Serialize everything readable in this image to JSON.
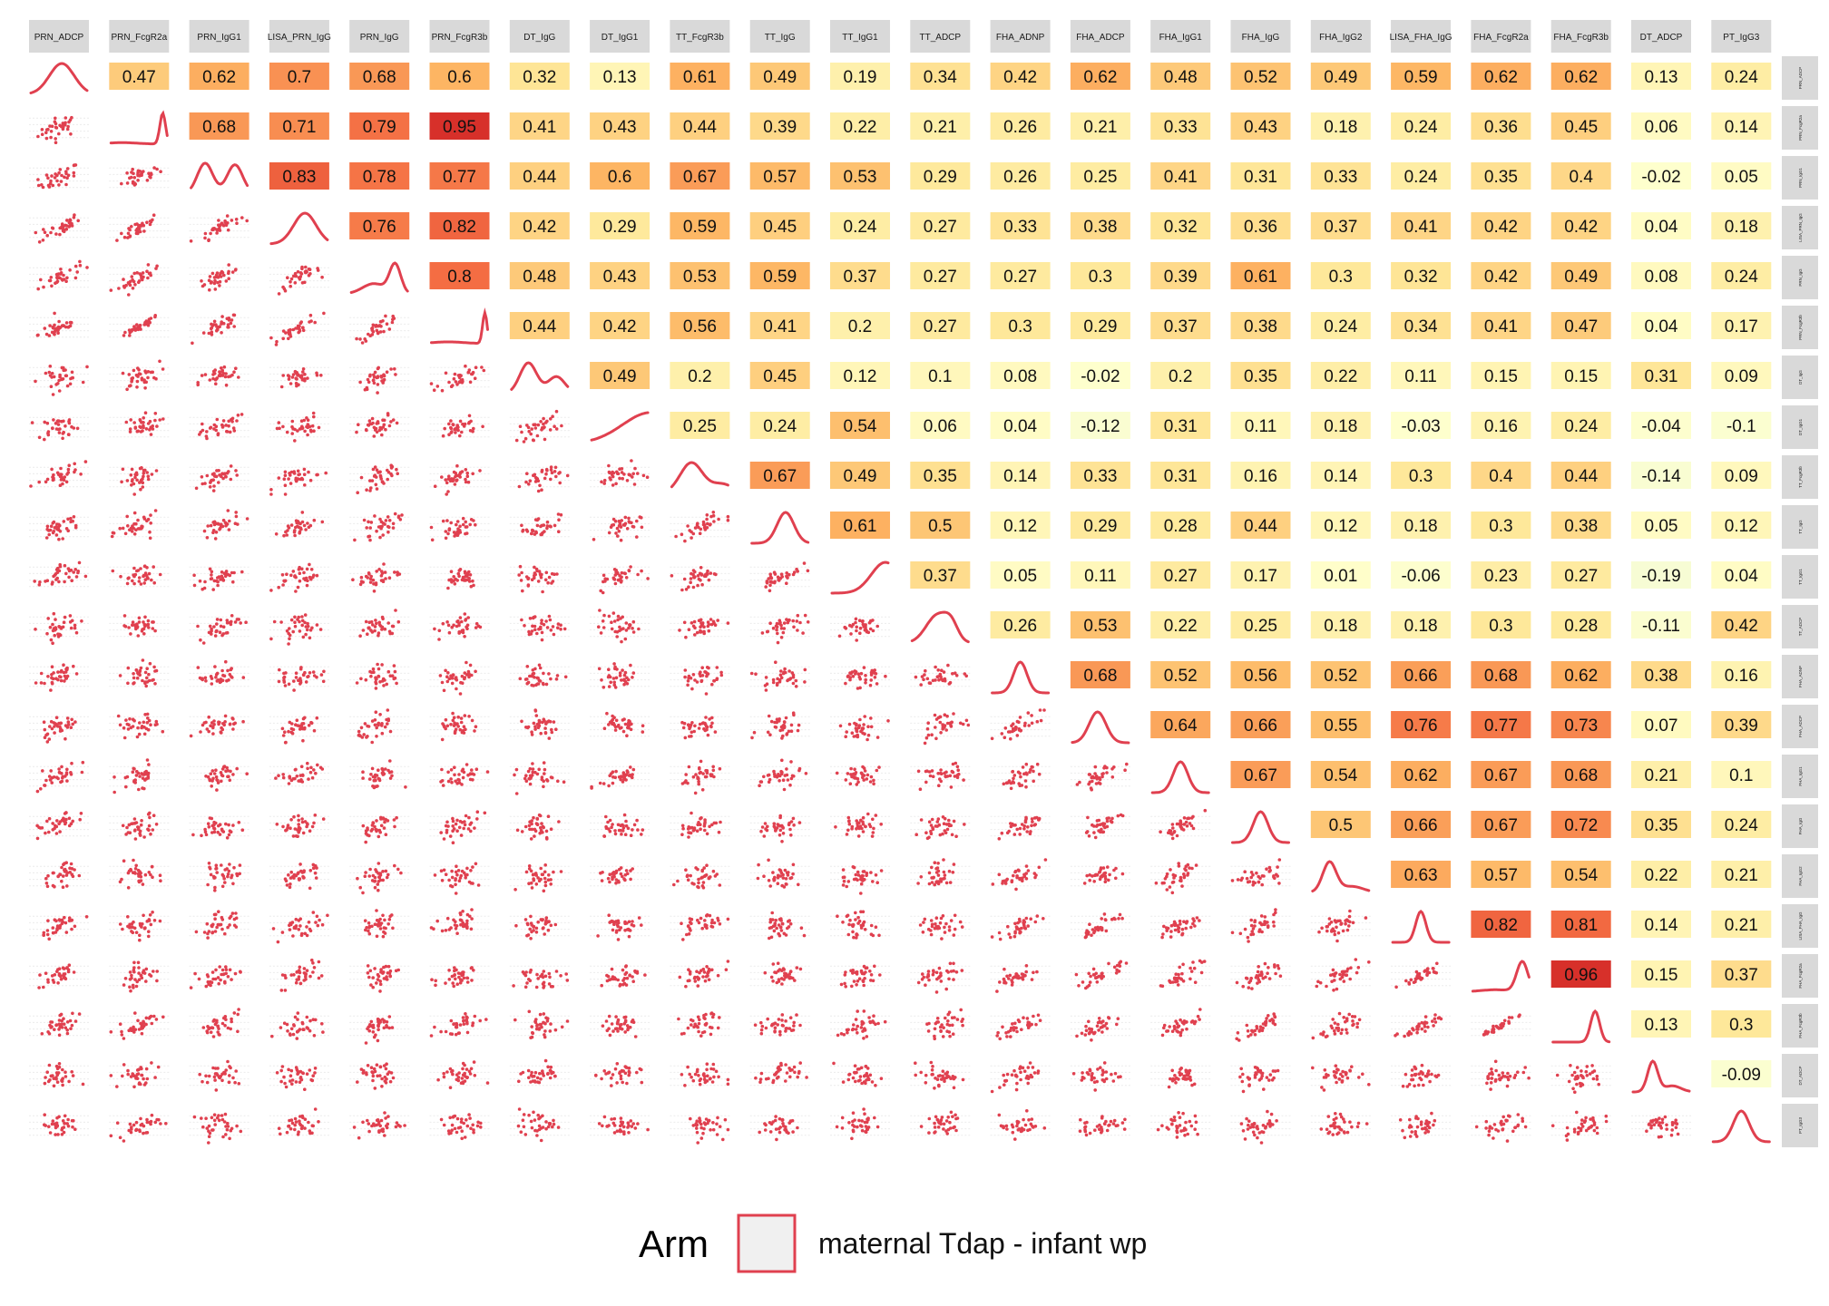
{
  "chart_data": {
    "type": "scatter-matrix",
    "variables": [
      "PRN_ADCP",
      "PRN_FcgR2a",
      "PRN_IgG1",
      "LISA_PRN_IgG",
      "PRN_IgG",
      "PRN_FcgR3b",
      "DT_IgG",
      "DT_IgG1",
      "TT_FcgR3b",
      "TT_IgG",
      "TT_IgG1",
      "TT_ADCP",
      "FHA_ADNP",
      "FHA_ADCP",
      "FHA_IgG1",
      "FHA_IgG",
      "FHA_IgG2",
      "LISA_FHA_IgG",
      "FHA_FcgR2a",
      "FHA_FcgR3b",
      "DT_ADCP",
      "PT_IgG3"
    ],
    "top_strip_labels": [
      "PRN_ADCP",
      "PRN_FcgR2a",
      "PRN_IgG1",
      "LISA_PRN_IgG",
      "PRN_IgG",
      "PRN_FcgR3b",
      "DT_IgG",
      "DT_IgG1",
      "TT_FcgR3b",
      "TT_IgG",
      "TT_IgG1",
      "TT_ADCP",
      "FHA_ADNP",
      "FHA_ADCP",
      "FHA_IgG1",
      "FHA_IgG",
      "FHA_IgG2",
      "LISA_FHA_IgG",
      "FHA_FcgR2a",
      "FHA_FcgR3b",
      "DT_ADCP",
      "PT_IgG3"
    ],
    "right_strip_labels": [
      "PRN_ADCP",
      "PRN_FcgR2a",
      "PRN_IgG1",
      "LISA_PRN_IgG",
      "PRN_IgG",
      "PRN_FcgR3b",
      "DT_IgG",
      "DT_IgG1",
      "TT_FcgR3b",
      "TT_IgG",
      "TT_IgG1",
      "TT_ADCP",
      "FHA_ADNP",
      "FHA_ADCP",
      "FHA_IgG1",
      "FHA_IgG",
      "FHA_IgG2",
      "LISA_FHA_IgG",
      "FHA_FcgR2a",
      "FHA_FcgR3b",
      "DT_ADCP",
      "PT_IgG3"
    ],
    "correlations": [
      [
        null,
        0.47,
        0.62,
        0.7,
        0.68,
        0.6,
        0.32,
        0.13,
        0.61,
        0.49,
        0.19,
        0.34,
        0.42,
        0.62,
        0.48,
        0.52,
        0.49,
        0.59,
        0.62,
        0.62,
        0.13,
        0.24
      ],
      [
        null,
        null,
        0.68,
        0.71,
        0.79,
        0.95,
        0.41,
        0.43,
        0.44,
        0.39,
        0.22,
        0.21,
        0.26,
        0.21,
        0.33,
        0.43,
        0.18,
        0.24,
        0.36,
        0.45,
        0.06,
        0.14
      ],
      [
        null,
        null,
        null,
        0.83,
        0.78,
        0.77,
        0.44,
        0.6,
        0.67,
        0.57,
        0.53,
        0.29,
        0.26,
        0.25,
        0.41,
        0.31,
        0.33,
        0.24,
        0.35,
        0.4,
        -0.02,
        0.05
      ],
      [
        null,
        null,
        null,
        null,
        0.76,
        0.82,
        0.42,
        0.29,
        0.59,
        0.45,
        0.24,
        0.27,
        0.33,
        0.38,
        0.32,
        0.36,
        0.37,
        0.41,
        0.42,
        0.42,
        0.04,
        0.18
      ],
      [
        null,
        null,
        null,
        null,
        null,
        0.8,
        0.48,
        0.43,
        0.53,
        0.59,
        0.37,
        0.27,
        0.27,
        0.3,
        0.39,
        0.61,
        0.3,
        0.32,
        0.42,
        0.49,
        0.08,
        0.24
      ],
      [
        null,
        null,
        null,
        null,
        null,
        null,
        0.44,
        0.42,
        0.56,
        0.41,
        0.2,
        0.27,
        0.3,
        0.29,
        0.37,
        0.38,
        0.24,
        0.34,
        0.41,
        0.47,
        0.04,
        0.17
      ],
      [
        null,
        null,
        null,
        null,
        null,
        null,
        null,
        0.49,
        0.2,
        0.45,
        0.12,
        0.1,
        0.08,
        -0.02,
        0.2,
        0.35,
        0.22,
        0.11,
        0.15,
        0.15,
        0.31,
        0.09
      ],
      [
        null,
        null,
        null,
        null,
        null,
        null,
        null,
        null,
        0.25,
        0.24,
        0.54,
        0.06,
        0.04,
        -0.12,
        0.31,
        0.11,
        0.18,
        -0.03,
        0.16,
        0.24,
        -0.04,
        -0.1
      ],
      [
        null,
        null,
        null,
        null,
        null,
        null,
        null,
        null,
        null,
        0.67,
        0.49,
        0.35,
        0.14,
        0.33,
        0.31,
        0.16,
        0.14,
        0.3,
        0.4,
        0.44,
        -0.14,
        0.09
      ],
      [
        null,
        null,
        null,
        null,
        null,
        null,
        null,
        null,
        null,
        null,
        0.61,
        0.5,
        0.12,
        0.29,
        0.28,
        0.44,
        0.12,
        0.18,
        0.3,
        0.38,
        0.05,
        0.12
      ],
      [
        null,
        null,
        null,
        null,
        null,
        null,
        null,
        null,
        null,
        null,
        null,
        0.37,
        0.05,
        0.11,
        0.27,
        0.17,
        0.01,
        -0.06,
        0.23,
        0.27,
        -0.19,
        0.04
      ],
      [
        null,
        null,
        null,
        null,
        null,
        null,
        null,
        null,
        null,
        null,
        null,
        null,
        0.26,
        0.53,
        0.22,
        0.25,
        0.18,
        0.18,
        0.3,
        0.28,
        -0.11,
        0.42
      ],
      [
        null,
        null,
        null,
        null,
        null,
        null,
        null,
        null,
        null,
        null,
        null,
        null,
        null,
        0.68,
        0.52,
        0.56,
        0.52,
        0.66,
        0.68,
        0.62,
        0.38,
        0.16
      ],
      [
        null,
        null,
        null,
        null,
        null,
        null,
        null,
        null,
        null,
        null,
        null,
        null,
        null,
        null,
        0.64,
        0.66,
        0.55,
        0.76,
        0.77,
        0.73,
        0.07,
        0.39
      ],
      [
        null,
        null,
        null,
        null,
        null,
        null,
        null,
        null,
        null,
        null,
        null,
        null,
        null,
        null,
        null,
        0.67,
        0.54,
        0.62,
        0.67,
        0.68,
        0.21,
        0.1
      ],
      [
        null,
        null,
        null,
        null,
        null,
        null,
        null,
        null,
        null,
        null,
        null,
        null,
        null,
        null,
        null,
        null,
        0.5,
        0.66,
        0.67,
        0.72,
        0.35,
        0.24
      ],
      [
        null,
        null,
        null,
        null,
        null,
        null,
        null,
        null,
        null,
        null,
        null,
        null,
        null,
        null,
        null,
        null,
        null,
        0.63,
        0.57,
        0.54,
        0.22,
        0.21
      ],
      [
        null,
        null,
        null,
        null,
        null,
        null,
        null,
        null,
        null,
        null,
        null,
        null,
        null,
        null,
        null,
        null,
        null,
        null,
        0.82,
        0.81,
        0.14,
        0.21
      ],
      [
        null,
        null,
        null,
        null,
        null,
        null,
        null,
        null,
        null,
        null,
        null,
        null,
        null,
        null,
        null,
        null,
        null,
        null,
        null,
        0.96,
        0.15,
        0.37
      ],
      [
        null,
        null,
        null,
        null,
        null,
        null,
        null,
        null,
        null,
        null,
        null,
        null,
        null,
        null,
        null,
        null,
        null,
        null,
        null,
        null,
        0.13,
        0.3
      ],
      [
        null,
        null,
        null,
        null,
        null,
        null,
        null,
        null,
        null,
        null,
        null,
        null,
        null,
        null,
        null,
        null,
        null,
        null,
        null,
        null,
        null,
        -0.09
      ],
      [
        null,
        null,
        null,
        null,
        null,
        null,
        null,
        null,
        null,
        null,
        null,
        null,
        null,
        null,
        null,
        null,
        null,
        null,
        null,
        null,
        null,
        null
      ]
    ],
    "color_scale": {
      "negative": "#f7fcd4",
      "zero": "#ffffcc",
      "low": "#fee89a",
      "mid": "#fdb563",
      "high": "#f46d43",
      "max": "#d7302a"
    },
    "marker_color": "#e0404f",
    "strip_color": "#d9d9d9",
    "legend": {
      "title": "Arm",
      "label": "maternal Tdap - infant wp",
      "placement": "bottom"
    }
  }
}
